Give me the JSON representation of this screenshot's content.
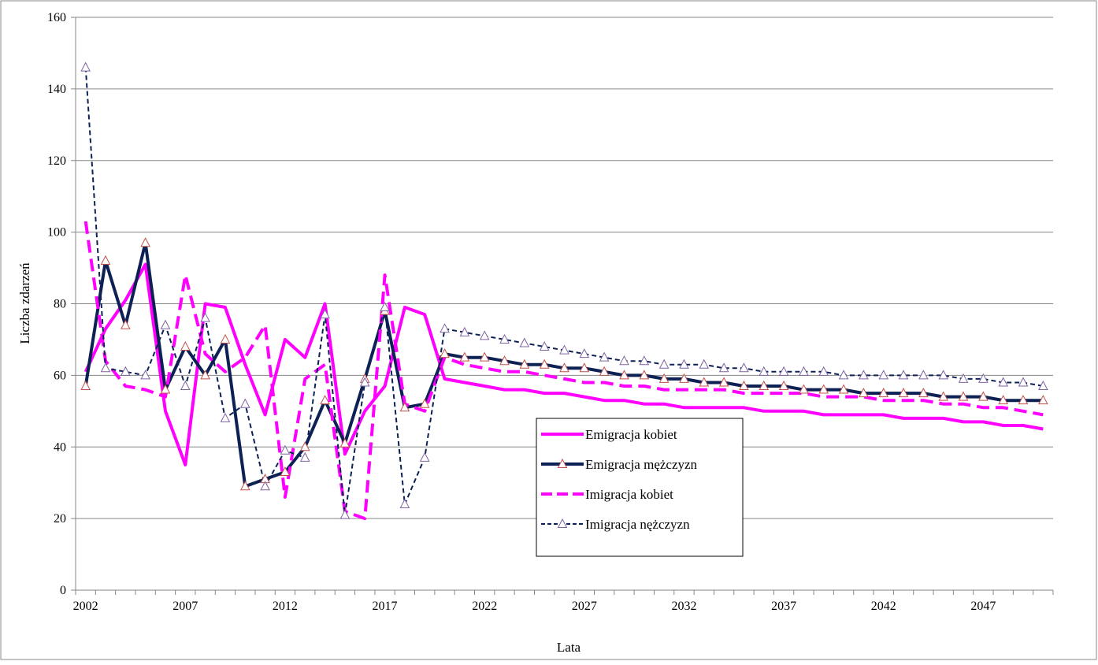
{
  "chart_data": {
    "type": "line",
    "xlabel": "Lata",
    "ylabel": "Liczba zdarzeń",
    "xlim": [
      2002,
      2050
    ],
    "ylim": [
      0,
      160
    ],
    "y_ticks": [
      0,
      20,
      40,
      60,
      80,
      100,
      120,
      140,
      160
    ],
    "x_ticks": [
      "2002",
      "2007",
      "2012",
      "2017",
      "2022",
      "2027",
      "2032",
      "2037",
      "2042",
      "2047"
    ],
    "grid": "horizontal",
    "legend_position": "lower-right",
    "x": [
      2002,
      2003,
      2004,
      2005,
      2006,
      2007,
      2008,
      2009,
      2010,
      2011,
      2012,
      2013,
      2014,
      2015,
      2016,
      2017,
      2018,
      2019,
      2020,
      2021,
      2022,
      2023,
      2024,
      2025,
      2026,
      2027,
      2028,
      2029,
      2030,
      2031,
      2032,
      2033,
      2034,
      2035,
      2036,
      2037,
      2038,
      2039,
      2040,
      2041,
      2042,
      2043,
      2044,
      2045,
      2046,
      2047,
      2048,
      2049,
      2050
    ],
    "series": [
      {
        "name": "Emigracja kobiet",
        "color": "#ff00ff",
        "line_style": "solid",
        "line_width": 4,
        "marker": "none",
        "values": [
          61,
          73,
          81,
          91,
          50,
          35,
          80,
          79,
          63,
          49,
          70,
          65,
          80,
          38,
          50,
          57,
          79,
          77,
          59,
          58,
          57,
          56,
          56,
          55,
          55,
          54,
          53,
          53,
          52,
          52,
          51,
          51,
          51,
          51,
          50,
          50,
          50,
          49,
          49,
          49,
          49,
          48,
          48,
          48,
          47,
          47,
          46,
          46,
          45
        ]
      },
      {
        "name": "Emigracja mężczyzn",
        "color": "#0d2154",
        "line_style": "solid",
        "line_width": 4,
        "marker": "triangle",
        "marker_color": "#c0504d",
        "values": [
          57,
          92,
          74,
          97,
          56,
          68,
          60,
          70,
          29,
          31,
          33,
          40,
          53,
          41,
          59,
          78,
          51,
          52,
          66,
          65,
          65,
          64,
          63,
          63,
          62,
          62,
          61,
          60,
          60,
          59,
          59,
          58,
          58,
          57,
          57,
          57,
          56,
          56,
          56,
          55,
          55,
          55,
          55,
          54,
          54,
          54,
          53,
          53,
          53
        ]
      },
      {
        "name": "Imigracja kobiet",
        "color": "#ff00ff",
        "line_style": "dashed",
        "line_width": 4,
        "marker": "none",
        "values": [
          103,
          64,
          57,
          56,
          54,
          88,
          66,
          61,
          65,
          74,
          26,
          59,
          63,
          22,
          20,
          88,
          52,
          50,
          65,
          63,
          62,
          61,
          61,
          60,
          59,
          58,
          58,
          57,
          57,
          56,
          56,
          56,
          56,
          55,
          55,
          55,
          55,
          54,
          54,
          54,
          53,
          53,
          53,
          52,
          52,
          51,
          51,
          50,
          49
        ]
      },
      {
        "name": "Imigracja nężczyzn",
        "color": "#0d2154",
        "line_style": "dashed",
        "line_width": 2,
        "marker": "triangle",
        "marker_color": "#7f64a2",
        "values": [
          146,
          62,
          61,
          60,
          74,
          57,
          76,
          48,
          52,
          29,
          39,
          37,
          77,
          21,
          58,
          79,
          24,
          37,
          73,
          72,
          71,
          70,
          69,
          68,
          67,
          66,
          65,
          64,
          64,
          63,
          63,
          63,
          62,
          62,
          61,
          61,
          61,
          61,
          60,
          60,
          60,
          60,
          60,
          60,
          59,
          59,
          58,
          58,
          57
        ]
      }
    ]
  }
}
